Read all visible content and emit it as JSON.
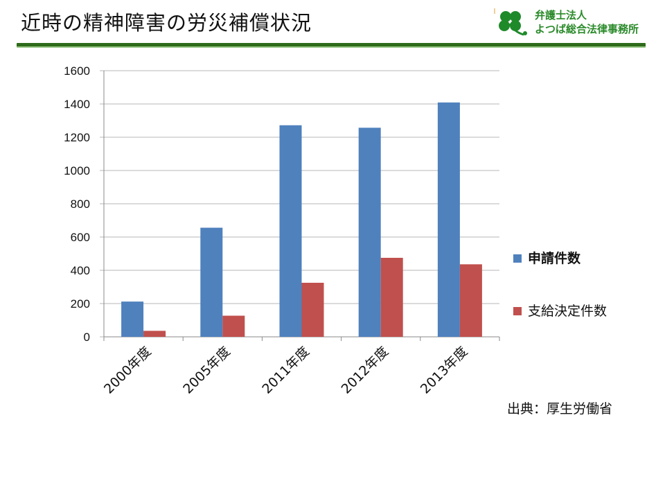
{
  "slide": {
    "title": "近時の精神障害の労災補償状況",
    "source": "出典：厚生労働省"
  },
  "logo": {
    "line1": "弁護士法人",
    "line2": "よつば総合法律事務所",
    "icon": "clover-icon"
  },
  "colors": {
    "series1": "#4f81bd",
    "series2": "#c0504d",
    "accent_green": "#2e6b1a",
    "grid": "#b7b7b7"
  },
  "chart_data": {
    "type": "bar",
    "categories": [
      "2000年度",
      "2005年度",
      "2011年度",
      "2012年度",
      "2013年度"
    ],
    "series": [
      {
        "name": "申請件数",
        "values": [
          212,
          656,
          1272,
          1257,
          1409
        ]
      },
      {
        "name": "支給決定件数",
        "values": [
          36,
          127,
          325,
          475,
          436
        ]
      }
    ],
    "ylim": [
      0,
      1600
    ],
    "yticks": [
      0,
      200,
      400,
      600,
      800,
      1000,
      1200,
      1400,
      1600
    ],
    "grid": true,
    "legend_position": "right"
  }
}
